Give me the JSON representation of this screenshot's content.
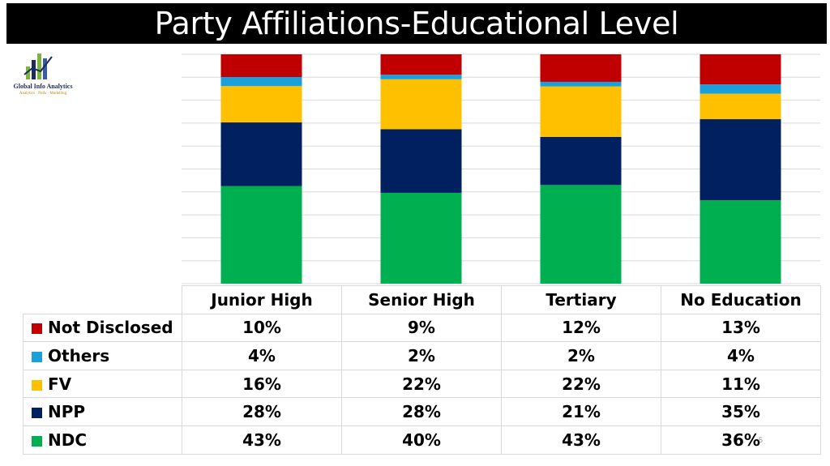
{
  "slide": {
    "title": "Party Affiliations-Educational Level",
    "page_number": "5"
  },
  "logo": {
    "name": "Global Info Analytics",
    "tagline": "Analytics · Polls · Modelling"
  },
  "colors": {
    "Not Disclosed": "#c00000",
    "Others": "#1aa1db",
    "FV": "#ffc000",
    "NPP": "#002060",
    "NDC": "#00b050"
  },
  "chart_data": {
    "type": "bar",
    "stacked": true,
    "normalized": true,
    "categories": [
      "Junior High",
      "Senior High",
      "Tertiary",
      "No Education"
    ],
    "series": [
      {
        "name": "Not Disclosed",
        "values": [
          10,
          9,
          12,
          13
        ],
        "labels": [
          "10%",
          "9%",
          "12%",
          "13%"
        ]
      },
      {
        "name": "Others",
        "values": [
          4,
          2,
          2,
          4
        ],
        "labels": [
          "4%",
          "2%",
          "2%",
          "4%"
        ]
      },
      {
        "name": "FV",
        "values": [
          16,
          22,
          22,
          11
        ],
        "labels": [
          "16%",
          "22%",
          "22%",
          "11%"
        ]
      },
      {
        "name": "NPP",
        "values": [
          28,
          28,
          21,
          35
        ],
        "labels": [
          "28%",
          "28%",
          "21%",
          "35%"
        ]
      },
      {
        "name": "NDC",
        "values": [
          43,
          40,
          43,
          36
        ],
        "labels": [
          "43%",
          "40%",
          "43%",
          "36%"
        ]
      }
    ],
    "ylim": [
      0,
      100
    ],
    "grid": true,
    "legend": "data-table-below"
  }
}
